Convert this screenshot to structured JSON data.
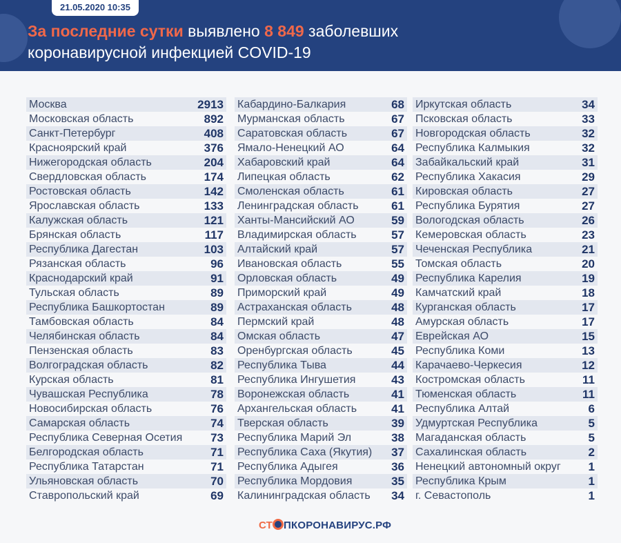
{
  "header": {
    "date": "21.05.2020 10:35",
    "title_hl1": "За последние сутки",
    "title_mid": " выявлено ",
    "title_hl2": "8 849",
    "title_end": " заболевших",
    "title_line2": "коронавирусной инфекцией COVID-19"
  },
  "columns": [
    [
      [
        "Москва",
        "2913"
      ],
      [
        "Московская область",
        "892"
      ],
      [
        "Санкт-Петербург",
        "408"
      ],
      [
        "Красноярский край",
        "376"
      ],
      [
        "Нижегородская область",
        "204"
      ],
      [
        "Свердловская область",
        "174"
      ],
      [
        "Ростовская область",
        "142"
      ],
      [
        "Ярославская область",
        "133"
      ],
      [
        "Калужская область",
        "121"
      ],
      [
        "Брянская область",
        "117"
      ],
      [
        "Республика Дагестан",
        "103"
      ],
      [
        "Рязанская область",
        "96"
      ],
      [
        "Краснодарский край",
        "91"
      ],
      [
        "Тульская область",
        "89"
      ],
      [
        "Республика Башкортостан",
        "89"
      ],
      [
        "Тамбовская область",
        "84"
      ],
      [
        "Челябинская область",
        "84"
      ],
      [
        "Пензенская область",
        "83"
      ],
      [
        "Волгоградская область",
        "82"
      ],
      [
        "Курская область",
        "81"
      ],
      [
        "Чувашская Республика",
        "78"
      ],
      [
        "Новосибирская область",
        "76"
      ],
      [
        "Самарская область",
        "74"
      ],
      [
        "Республика Северная Осетия",
        "73"
      ],
      [
        "Белгородская область",
        "71"
      ],
      [
        "Республика Татарстан",
        "71"
      ],
      [
        "Ульяновская область",
        "70"
      ],
      [
        "Ставропольский край",
        "69"
      ]
    ],
    [
      [
        "Кабардино-Балкария",
        "68"
      ],
      [
        "Мурманская область",
        "67"
      ],
      [
        "Саратовская область",
        "67"
      ],
      [
        "Ямало-Ненецкий АО",
        "64"
      ],
      [
        "Хабаровский край",
        "64"
      ],
      [
        "Липецкая область",
        "62"
      ],
      [
        "Смоленская область",
        "61"
      ],
      [
        "Ленинградская область",
        "61"
      ],
      [
        "Ханты-Мансийский АО",
        "59"
      ],
      [
        "Владимирская область",
        "57"
      ],
      [
        "Алтайский край",
        "57"
      ],
      [
        "Ивановская область",
        "55"
      ],
      [
        "Орловская область",
        "49"
      ],
      [
        "Приморский край",
        "49"
      ],
      [
        "Астраханская область",
        "48"
      ],
      [
        "Пермский край",
        "48"
      ],
      [
        "Омская область",
        "47"
      ],
      [
        "Оренбургская область",
        "45"
      ],
      [
        "Республика Тыва",
        "44"
      ],
      [
        "Республика Ингушетия",
        "43"
      ],
      [
        "Воронежская область",
        "41"
      ],
      [
        "Архангельская область",
        "41"
      ],
      [
        "Тверская область",
        "39"
      ],
      [
        "Республика Марий Эл",
        "38"
      ],
      [
        "Республика Саха (Якутия)",
        "37"
      ],
      [
        "Республика Адыгея",
        "36"
      ],
      [
        "Республика Мордовия",
        "35"
      ],
      [
        "Калининградская область",
        "34"
      ]
    ],
    [
      [
        "Иркутская область",
        "34"
      ],
      [
        "Псковская область",
        "33"
      ],
      [
        "Новгородская область",
        "32"
      ],
      [
        "Республика Калмыкия",
        "32"
      ],
      [
        "Забайкальский край",
        "31"
      ],
      [
        "Республика Хакасия",
        "29"
      ],
      [
        "Кировская область",
        "27"
      ],
      [
        "Республика Бурятия",
        "27"
      ],
      [
        "Вологодская область",
        "26"
      ],
      [
        "Кемеровская область",
        "23"
      ],
      [
        "Чеченская Республика",
        "21"
      ],
      [
        "Томская область",
        "20"
      ],
      [
        "Республика Карелия",
        "19"
      ],
      [
        "Камчатский край",
        "18"
      ],
      [
        "Курганская область",
        "17"
      ],
      [
        "Амурская область",
        "17"
      ],
      [
        "Еврейская АО",
        "15"
      ],
      [
        "Республика Коми",
        "13"
      ],
      [
        "Карачаево-Черкесия",
        "12"
      ],
      [
        "Костромская область",
        "11"
      ],
      [
        "Тюменская область",
        "11"
      ],
      [
        "Республика Алтай",
        "6"
      ],
      [
        "Удмуртская Республика",
        "5"
      ],
      [
        "Магаданская область",
        "5"
      ],
      [
        "Сахалинская область",
        "2"
      ],
      [
        "Ненецкий автономный округ",
        "1"
      ],
      [
        "Республика Крым",
        "1"
      ],
      [
        "г. Севастополь",
        "1"
      ]
    ]
  ],
  "footer": {
    "logo_a": "СТ",
    "logo_b": "ПКОРОНАВИРУС.РФ"
  },
  "colors": {
    "header": "#24427f",
    "accent": "#f0684a"
  }
}
